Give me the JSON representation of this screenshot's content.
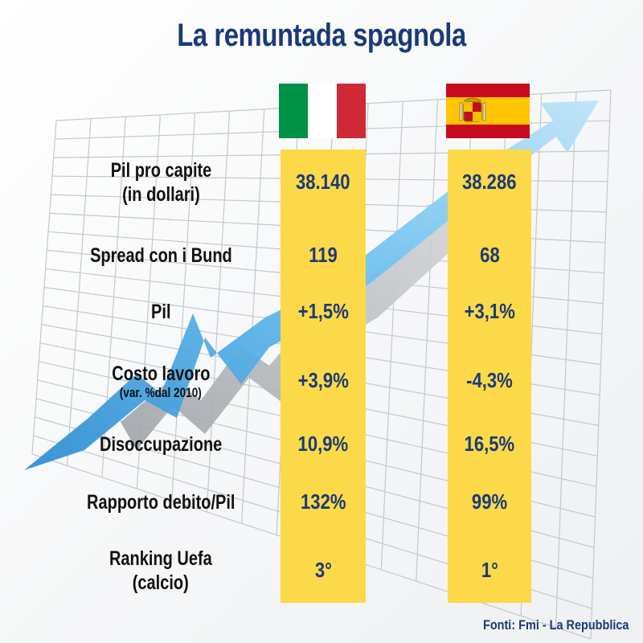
{
  "title": "La remuntada spagnola",
  "source": "Fonti: Fmi - La Repubblica",
  "colors": {
    "title": "#1a3a78",
    "column_highlight": "#fcd948",
    "value_text": "#1a3a78",
    "arrow_front": "#4aa8e2",
    "arrow_back": "#a9acb0"
  },
  "flags": {
    "italy": [
      "#009246",
      "#ffffff",
      "#ce2b37"
    ],
    "spain": [
      "#c60b1e",
      "#ffc400",
      "#c60b1e"
    ]
  },
  "chart_data": {
    "type": "table",
    "title": "La remuntada spagnola",
    "columns": [
      "Italia",
      "Spagna"
    ],
    "rows": [
      {
        "label": "Pil pro capite",
        "sublabel": "(in dollari)",
        "italy": "38.140",
        "spain": "38.286"
      },
      {
        "label": "Spread con i Bund",
        "sublabel": "",
        "italy": "119",
        "spain": "68"
      },
      {
        "label": "Pil",
        "sublabel": "",
        "italy": "+1,5%",
        "spain": "+3,1%"
      },
      {
        "label": "Costo lavoro",
        "sublabel": "(var. %dal 2010)",
        "italy": "+3,9%",
        "spain": "-4,3%"
      },
      {
        "label": "Disoccupazione",
        "sublabel": "",
        "italy": "10,9%",
        "spain": "16,5%"
      },
      {
        "label": "Rapporto debito/Pil",
        "sublabel": "",
        "italy": "132%",
        "spain": "99%"
      },
      {
        "label": "Ranking Uefa",
        "sublabel": "(calcio)",
        "italy": "3°",
        "spain": "1°"
      }
    ]
  }
}
